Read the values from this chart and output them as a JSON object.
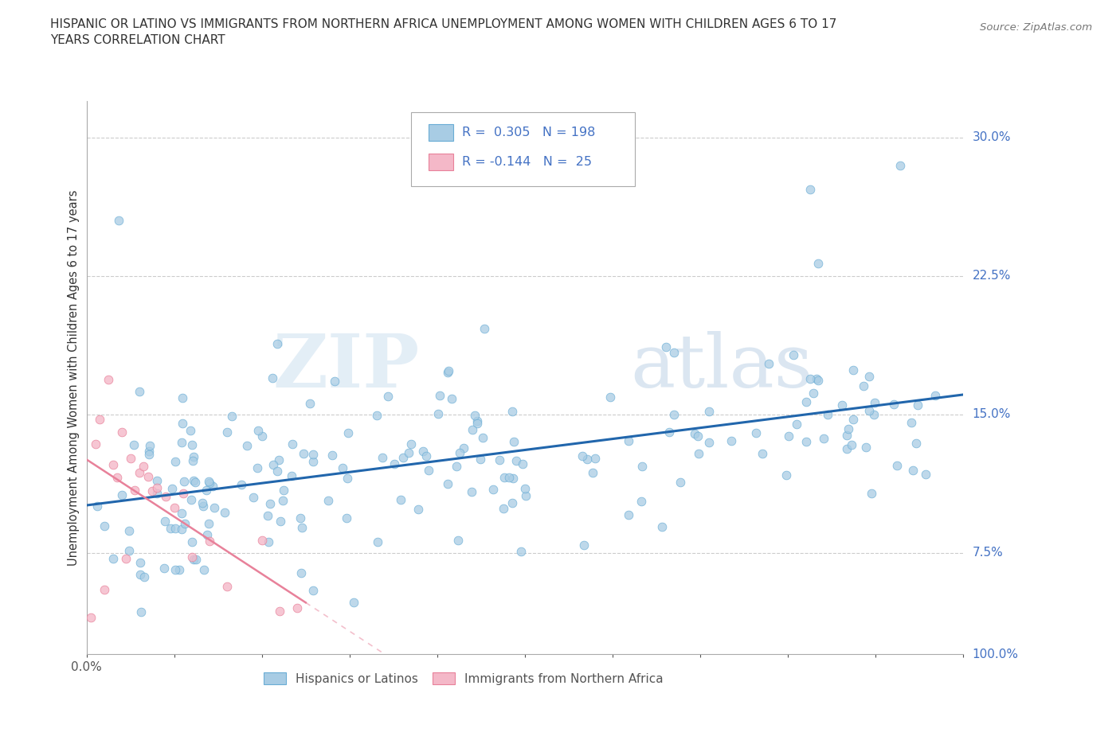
{
  "title_line1": "HISPANIC OR LATINO VS IMMIGRANTS FROM NORTHERN AFRICA UNEMPLOYMENT AMONG WOMEN WITH CHILDREN AGES 6 TO 17",
  "title_line2": "YEARS CORRELATION CHART",
  "source_text": "Source: ZipAtlas.com",
  "ylabel": "Unemployment Among Women with Children Ages 6 to 17 years",
  "xlim": [
    0.0,
    1.0
  ],
  "ylim": [
    0.02,
    0.32
  ],
  "ytick_positions": [
    0.075,
    0.15,
    0.225,
    0.3
  ],
  "yticklabels": [
    "7.5%",
    "15.0%",
    "22.5%",
    "30.0%"
  ],
  "r1": 0.305,
  "n1": 198,
  "r2": -0.144,
  "n2": 25,
  "color_blue": "#a8cce4",
  "color_pink": "#f4b8c8",
  "edge_blue": "#6aadd5",
  "edge_pink": "#e8819a",
  "line_blue": "#2166ac",
  "line_pink": "#e8819a",
  "legend_label1": "Hispanics or Latinos",
  "legend_label2": "Immigrants from Northern Africa",
  "watermark_zip": "ZIP",
  "watermark_atlas": "atlas"
}
